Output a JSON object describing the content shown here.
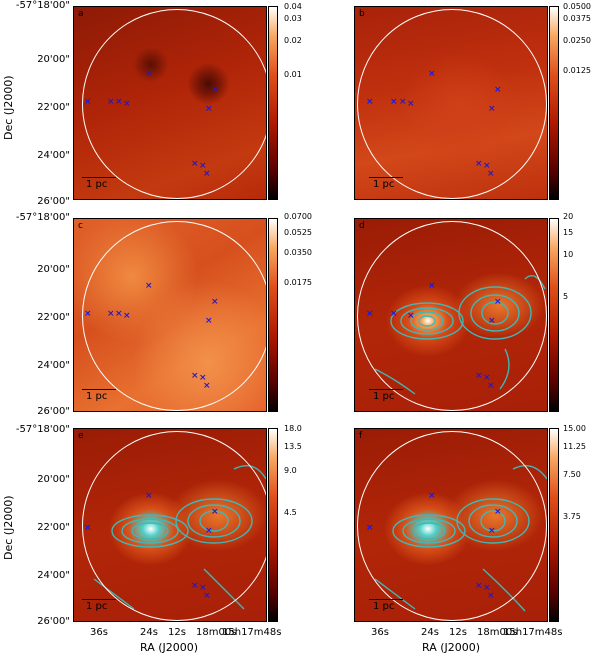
{
  "panels": [
    {
      "tag": "a",
      "cbar_ticks": [
        "0.04",
        "0.03",
        "0.02",
        "0.01"
      ],
      "has_contours": false,
      "scale": "1 pc"
    },
    {
      "tag": "b",
      "cbar_ticks": [
        "0.0500",
        "0.0375",
        "0.0250",
        "0.0125"
      ],
      "has_contours": false,
      "scale": "1 pc"
    },
    {
      "tag": "c",
      "cbar_ticks": [
        "0.0700",
        "0.0525",
        "0.0350",
        "0.0175"
      ],
      "has_contours": false,
      "scale": "1 pc"
    },
    {
      "tag": "d",
      "cbar_ticks": [
        "20",
        "15",
        "10",
        "5"
      ],
      "has_contours": true,
      "scale": "1 pc"
    },
    {
      "tag": "e",
      "cbar_ticks": [
        "18.0",
        "13.5",
        "9.0",
        "4.5"
      ],
      "has_contours": true,
      "scale": "1 pc"
    },
    {
      "tag": "f",
      "cbar_ticks": [
        "15.00",
        "11.25",
        "7.50",
        "3.75"
      ],
      "has_contours": true,
      "scale": "1 pc"
    }
  ],
  "axes": {
    "dec_label": "Dec (J2000)",
    "ra_label": "RA (J2000)",
    "dec_ticks": [
      "-57°18'00\"",
      "20'00\"",
      "22'00\"",
      "24'00\"",
      "26'00\""
    ],
    "ra_ticks": [
      "36s",
      "24s",
      "12s",
      "18m00s",
      "15h17m48s"
    ]
  },
  "colors": {
    "map_base": "#c42a0a",
    "map_bright": "#f07a1e",
    "marker": "#1a1ad9",
    "contour": "#3fb8b4",
    "circle": "#ffffff"
  }
}
